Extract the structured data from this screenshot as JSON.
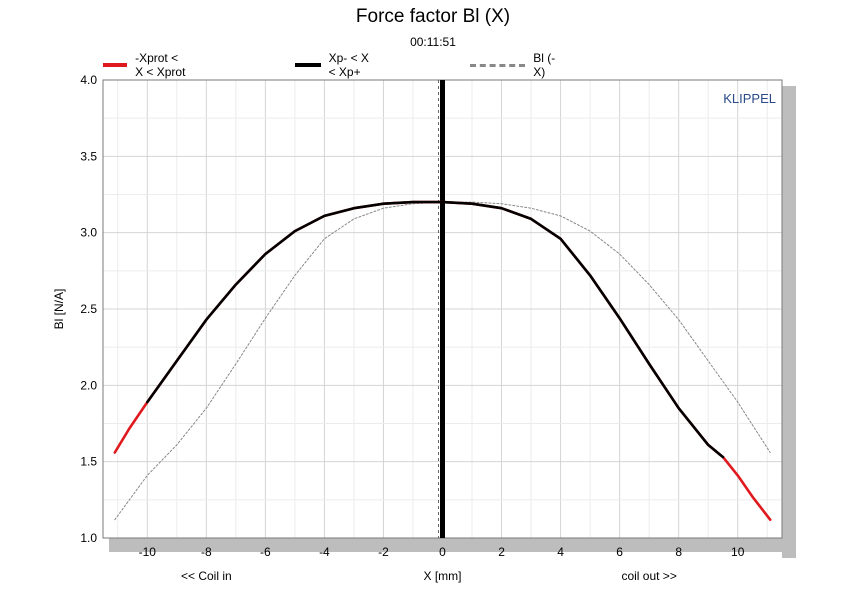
{
  "chart_data": {
    "type": "line",
    "title": "Force factor Bl (X)",
    "subtitle": "00:11:51",
    "brand": "KLIPPEL",
    "xlabel": "X [mm]",
    "ylabel": "Bl [N/A]",
    "x_left_note": "<< Coil in",
    "x_right_note": "coil out >>",
    "xlim": [
      -11.5,
      11.5
    ],
    "ylim": [
      1.0,
      4.0
    ],
    "x_ticks": [
      -10,
      -8,
      -6,
      -4,
      -2,
      0,
      2,
      4,
      6,
      8,
      10
    ],
    "x_tick_labels": [
      "-10",
      "-8",
      "-6",
      "-4",
      "-2",
      "0",
      "2",
      "4",
      "6",
      "8",
      "10"
    ],
    "y_ticks": [
      1.0,
      1.5,
      2.0,
      2.5,
      3.0,
      3.5,
      4.0
    ],
    "y_tick_labels": [
      "1.0",
      "1.5",
      "2.0",
      "2.5",
      "3.0",
      "3.5",
      "4.0"
    ],
    "grid": true,
    "legend_position": "top",
    "vertical_marker_x": 0,
    "series": [
      {
        "name": "-Xprot < X < Xprot",
        "color": "#e0191e",
        "style": "solid",
        "x": [
          -11.1,
          -10.6,
          -10.0,
          -9.0,
          -8.0,
          -7.0,
          -6.0,
          -5.0,
          -4.0,
          -3.0,
          -2.0,
          -1.0,
          0.0,
          1.0,
          2.0,
          3.0,
          4.0,
          5.0,
          6.0,
          7.0,
          8.0,
          9.0,
          9.5,
          10.0,
          10.5,
          11.1
        ],
        "y": [
          1.56,
          1.72,
          1.89,
          2.16,
          2.43,
          2.66,
          2.86,
          3.01,
          3.11,
          3.16,
          3.19,
          3.2,
          3.2,
          3.19,
          3.16,
          3.09,
          2.96,
          2.72,
          2.44,
          2.14,
          1.85,
          1.61,
          1.53,
          1.41,
          1.27,
          1.12
        ]
      },
      {
        "name": "Xp- < X < Xp+",
        "color": "#000000",
        "style": "solid",
        "x": [
          -10.0,
          -9.0,
          -8.0,
          -7.0,
          -6.0,
          -5.0,
          -4.0,
          -3.0,
          -2.0,
          -1.0,
          0.0,
          1.0,
          2.0,
          3.0,
          4.0,
          5.0,
          6.0,
          7.0,
          8.0,
          9.0,
          9.5
        ],
        "y": [
          1.89,
          2.16,
          2.43,
          2.66,
          2.86,
          3.01,
          3.11,
          3.16,
          3.19,
          3.2,
          3.2,
          3.19,
          3.16,
          3.09,
          2.96,
          2.72,
          2.44,
          2.14,
          1.85,
          1.61,
          1.53
        ]
      },
      {
        "name": "Bl (-X)",
        "color": "#888888",
        "style": "dashed",
        "x": [
          -11.1,
          -10.0,
          -9.0,
          -8.0,
          -7.0,
          -6.0,
          -5.0,
          -4.0,
          -3.0,
          -2.0,
          -1.0,
          0.0,
          1.0,
          2.0,
          3.0,
          4.0,
          5.0,
          6.0,
          7.0,
          8.0,
          9.0,
          10.0,
          11.1
        ],
        "y": [
          1.12,
          1.41,
          1.61,
          1.85,
          2.14,
          2.44,
          2.72,
          2.96,
          3.09,
          3.16,
          3.19,
          3.2,
          3.2,
          3.19,
          3.16,
          3.11,
          3.01,
          2.86,
          2.66,
          2.43,
          2.16,
          1.89,
          1.56
        ]
      }
    ]
  }
}
